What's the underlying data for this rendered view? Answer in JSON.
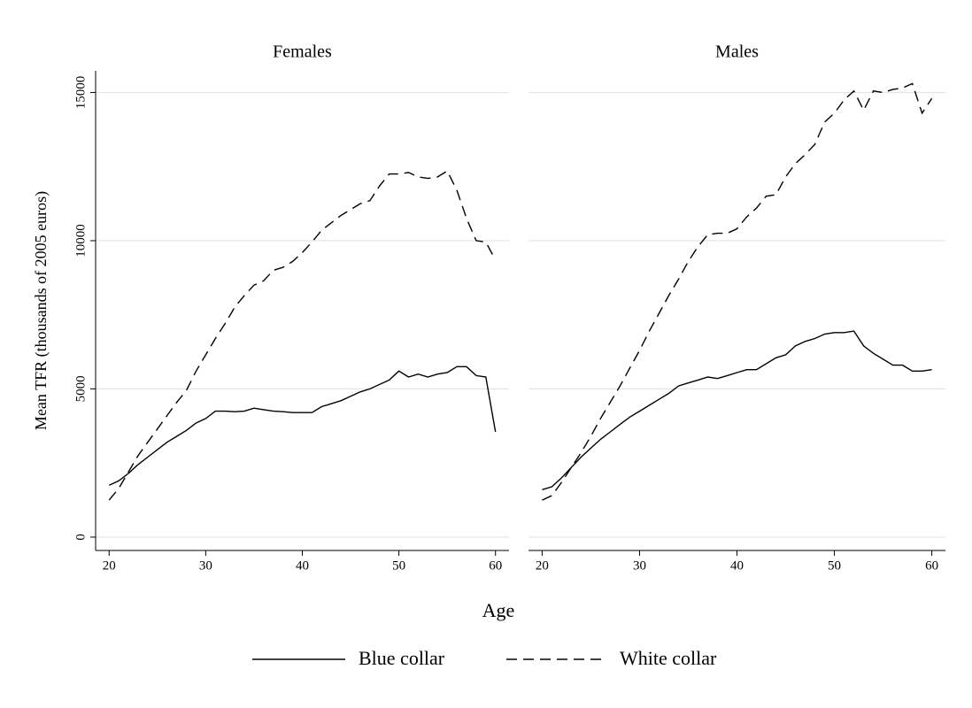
{
  "x_label": "Age",
  "y_label": "Mean TFR (thousands of 2005 euros)",
  "legend": "bottom",
  "chart_data": [
    {
      "type": "line",
      "title": "Females",
      "x": [
        20,
        21,
        22,
        23,
        24,
        25,
        26,
        27,
        28,
        29,
        30,
        31,
        32,
        33,
        34,
        35,
        36,
        37,
        38,
        39,
        40,
        41,
        42,
        43,
        44,
        45,
        46,
        47,
        48,
        49,
        50,
        51,
        52,
        53,
        54,
        55,
        56,
        57,
        58,
        59,
        60
      ],
      "series": [
        {
          "name": "Blue collar",
          "color": "#000000",
          "linestyle": "solid",
          "values": [
            1750,
            1900,
            2150,
            2450,
            2700,
            2950,
            3200,
            3400,
            3600,
            3850,
            4000,
            4250,
            4250,
            4230,
            4250,
            4350,
            4300,
            4250,
            4230,
            4200,
            4200,
            4200,
            4400,
            4500,
            4600,
            4750,
            4900,
            5000,
            5150,
            5300,
            5600,
            5400,
            5500,
            5400,
            5500,
            5550,
            5750,
            5750,
            5450,
            5400,
            3550
          ]
        },
        {
          "name": "White collar",
          "color": "#000000",
          "linestyle": "dashed",
          "values": [
            1250,
            1650,
            2200,
            2750,
            3200,
            3650,
            4100,
            4550,
            4950,
            5600,
            6150,
            6700,
            7200,
            7750,
            8150,
            8500,
            8650,
            9000,
            9100,
            9300,
            9600,
            9950,
            10350,
            10600,
            10850,
            11050,
            11250,
            11350,
            11850,
            12250,
            12250,
            12300,
            12150,
            12100,
            12150,
            12350,
            11700,
            10750,
            10000,
            9950,
            9350
          ]
        }
      ],
      "xlim": [
        18.6,
        61.4
      ],
      "ylim": [
        -450,
        15730
      ],
      "xticks": [
        20,
        30,
        40,
        50,
        60
      ],
      "yticks": [
        0,
        5000,
        10000,
        15000
      ],
      "grid": true
    },
    {
      "type": "line",
      "title": "Males",
      "x": [
        20,
        21,
        22,
        23,
        24,
        25,
        26,
        27,
        28,
        29,
        30,
        31,
        32,
        33,
        34,
        35,
        36,
        37,
        38,
        39,
        40,
        41,
        42,
        43,
        44,
        45,
        46,
        47,
        48,
        49,
        50,
        51,
        52,
        53,
        54,
        55,
        56,
        57,
        58,
        59,
        60
      ],
      "series": [
        {
          "name": "Blue collar",
          "color": "#000000",
          "linestyle": "solid",
          "values": [
            1600,
            1700,
            2000,
            2350,
            2700,
            3000,
            3300,
            3550,
            3800,
            4050,
            4250,
            4450,
            4650,
            4850,
            5100,
            5200,
            5300,
            5400,
            5350,
            5450,
            5550,
            5650,
            5650,
            5850,
            6050,
            6150,
            6450,
            6600,
            6700,
            6850,
            6900,
            6900,
            6950,
            6450,
            6200,
            6000,
            5800,
            5800,
            5600,
            5600,
            5650
          ]
        },
        {
          "name": "White collar",
          "color": "#000000",
          "linestyle": "dashed",
          "values": [
            1250,
            1400,
            1850,
            2350,
            2850,
            3400,
            4000,
            4550,
            5100,
            5700,
            6300,
            6950,
            7550,
            8150,
            8700,
            9300,
            9800,
            10200,
            10250,
            10250,
            10400,
            10800,
            11100,
            11500,
            11550,
            12150,
            12600,
            12900,
            13250,
            14000,
            14300,
            14750,
            15050,
            14400,
            15050,
            15000,
            15100,
            15150,
            15300,
            14300,
            14800
          ]
        }
      ],
      "xlim": [
        18.6,
        61.4
      ],
      "ylim": [
        -450,
        15730
      ],
      "xticks": [
        20,
        30,
        40,
        50,
        60
      ],
      "yticks": [
        0,
        5000,
        10000,
        15000
      ],
      "grid": true
    }
  ]
}
